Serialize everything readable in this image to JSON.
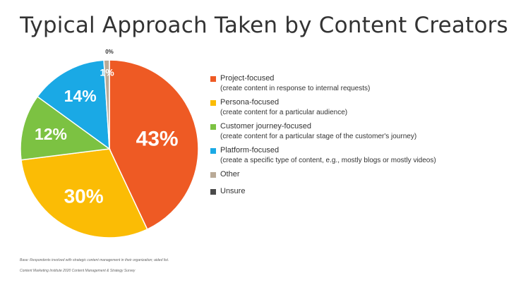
{
  "chart_data": {
    "type": "pie",
    "title": "Typical Approach Taken by Content Creators",
    "slices": [
      {
        "label": "Project-focused",
        "sublabel": "(create content in response to internal requests)",
        "value": 43,
        "display": "43%",
        "color": "#ee5a24"
      },
      {
        "label": "Persona-focused",
        "sublabel": "(create content for a particular audience)",
        "value": 30,
        "display": "30%",
        "color": "#fbbc05"
      },
      {
        "label": "Customer journey-focused",
        "sublabel": "(create content for a particular stage of the customer's journey)",
        "value": 12,
        "display": "12%",
        "color": "#7cc242"
      },
      {
        "label": "Platform-focused",
        "sublabel": "(create a specific type of content, e.g., mostly blogs or mostly videos)",
        "value": 14,
        "display": "14%",
        "color": "#1aa9e5"
      },
      {
        "label": "Other",
        "sublabel": "",
        "value": 1,
        "display": "1%",
        "color": "#b9aa97"
      },
      {
        "label": "Unsure",
        "sublabel": "",
        "value": 0,
        "display": "0%",
        "color": "#4a4a4a"
      }
    ]
  },
  "footnote": {
    "base": "Base: Respondents involved with strategic content management in their organization; aided list.",
    "source": "Content Marketing Institute 2020 Content Management & Strategy Survey"
  }
}
